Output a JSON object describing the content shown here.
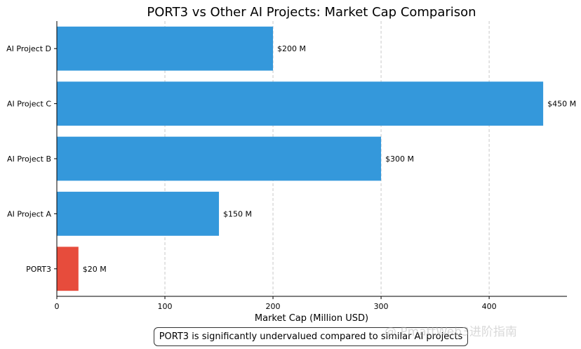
{
  "chart_data": {
    "type": "bar",
    "orientation": "horizontal",
    "title": "PORT3 vs Other AI Projects: Market Cap Comparison",
    "xlabel": "Market Cap (Million USD)",
    "ylabel": "",
    "categories": [
      "PORT3",
      "AI Project A",
      "AI Project B",
      "AI Project C",
      "AI Project D"
    ],
    "values": [
      20,
      150,
      300,
      450,
      200
    ],
    "data_labels": [
      "$20 M",
      "$150 M",
      "$300 M",
      "$450 M",
      "$200 M"
    ],
    "bar_colors": [
      "#e74c3c",
      "#3498db",
      "#3498db",
      "#3498db",
      "#3498db"
    ],
    "xlim": [
      0,
      472
    ],
    "xticks": [
      0,
      100,
      200,
      300,
      400
    ],
    "xtick_labels": [
      "0",
      "100",
      "200",
      "300",
      "400"
    ],
    "grid": "x-dashed",
    "annotation": "PORT3 is significantly undervalued compared to similar AI projects"
  },
  "watermark": "@ PmattWeb3进阶指南"
}
